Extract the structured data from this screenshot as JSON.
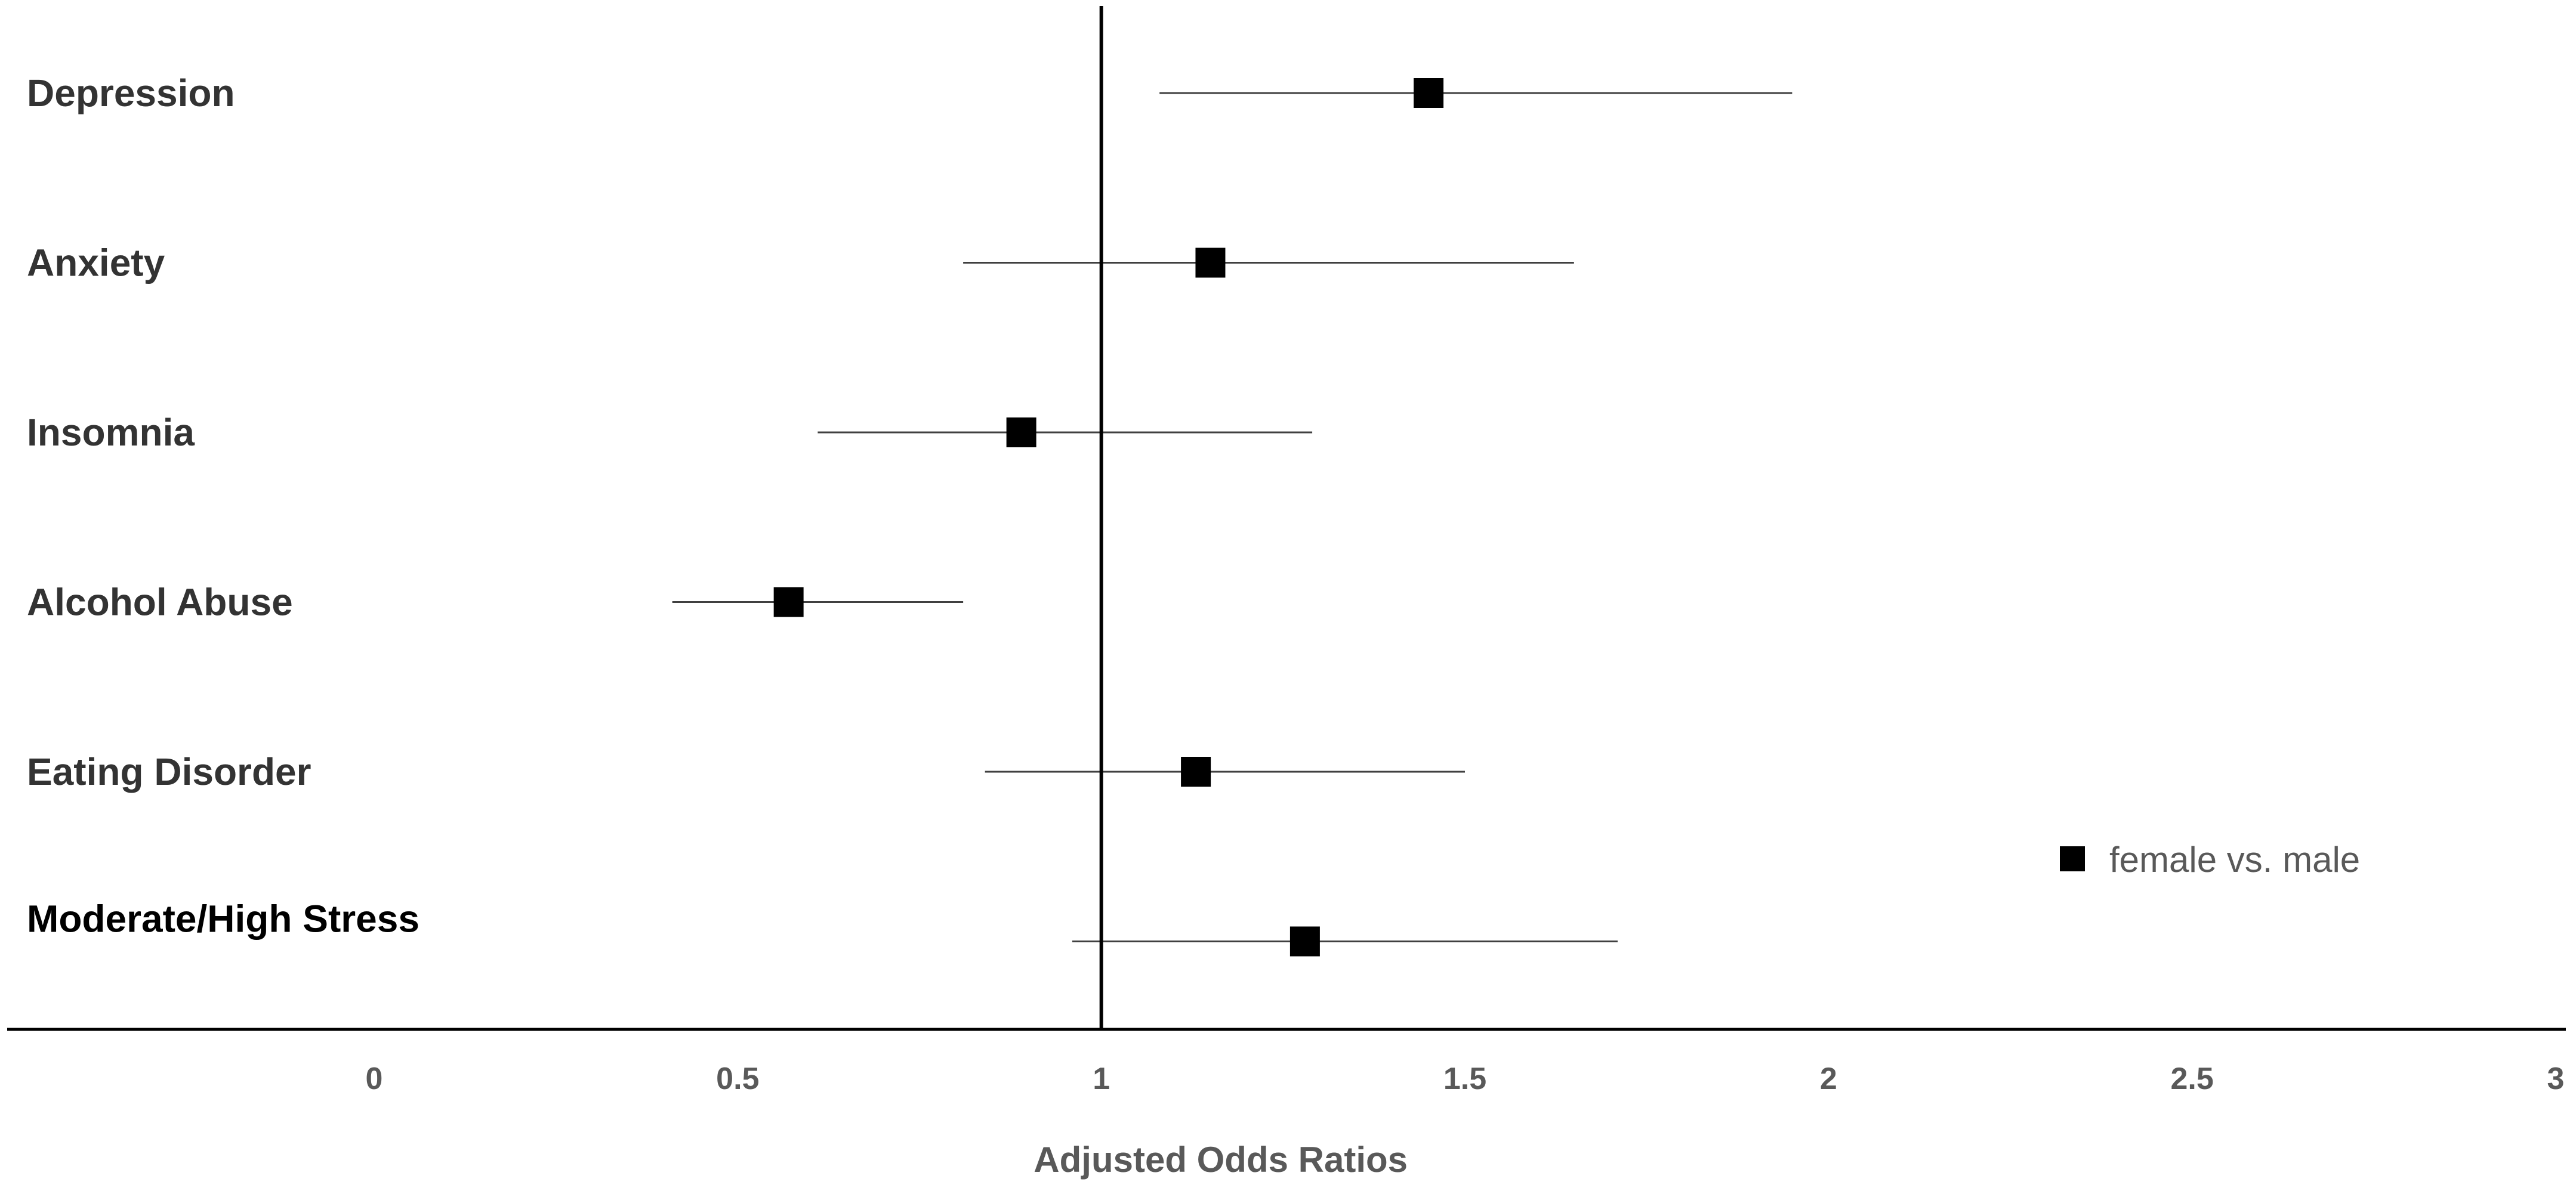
{
  "chart_data": {
    "type": "scatter",
    "subtype": "forest-plot",
    "title": "",
    "xlabel": "Adjusted Odds Ratios",
    "ylabel": "",
    "xlim": [
      -0.5,
      3
    ],
    "xticks": [
      0,
      0.5,
      1,
      1.5,
      2,
      2.5,
      3
    ],
    "xtick_labels": [
      "0",
      "0.5",
      "1",
      "1.5",
      "2",
      "2.5",
      "3"
    ],
    "reference_line_x": 1,
    "grid": false,
    "legend_position": "bottom-right",
    "series": [
      {
        "name": "female vs. male",
        "marker": "square",
        "color": "#000000",
        "points": [
          {
            "category": "Depression",
            "estimate": 1.45,
            "ci_lower": 1.08,
            "ci_upper": 1.95
          },
          {
            "category": "Anxiety",
            "estimate": 1.15,
            "ci_lower": 0.81,
            "ci_upper": 1.65
          },
          {
            "category": "Insomnia",
            "estimate": 0.89,
            "ci_lower": 0.61,
            "ci_upper": 1.29
          },
          {
            "category": "Alcohol Abuse",
            "estimate": 0.57,
            "ci_lower": 0.41,
            "ci_upper": 0.81
          },
          {
            "category": "Eating Disorder",
            "estimate": 1.13,
            "ci_lower": 0.84,
            "ci_upper": 1.5
          },
          {
            "category": "Moderate/High Stress",
            "estimate": 1.28,
            "ci_lower": 0.96,
            "ci_upper": 1.71
          }
        ]
      }
    ]
  }
}
